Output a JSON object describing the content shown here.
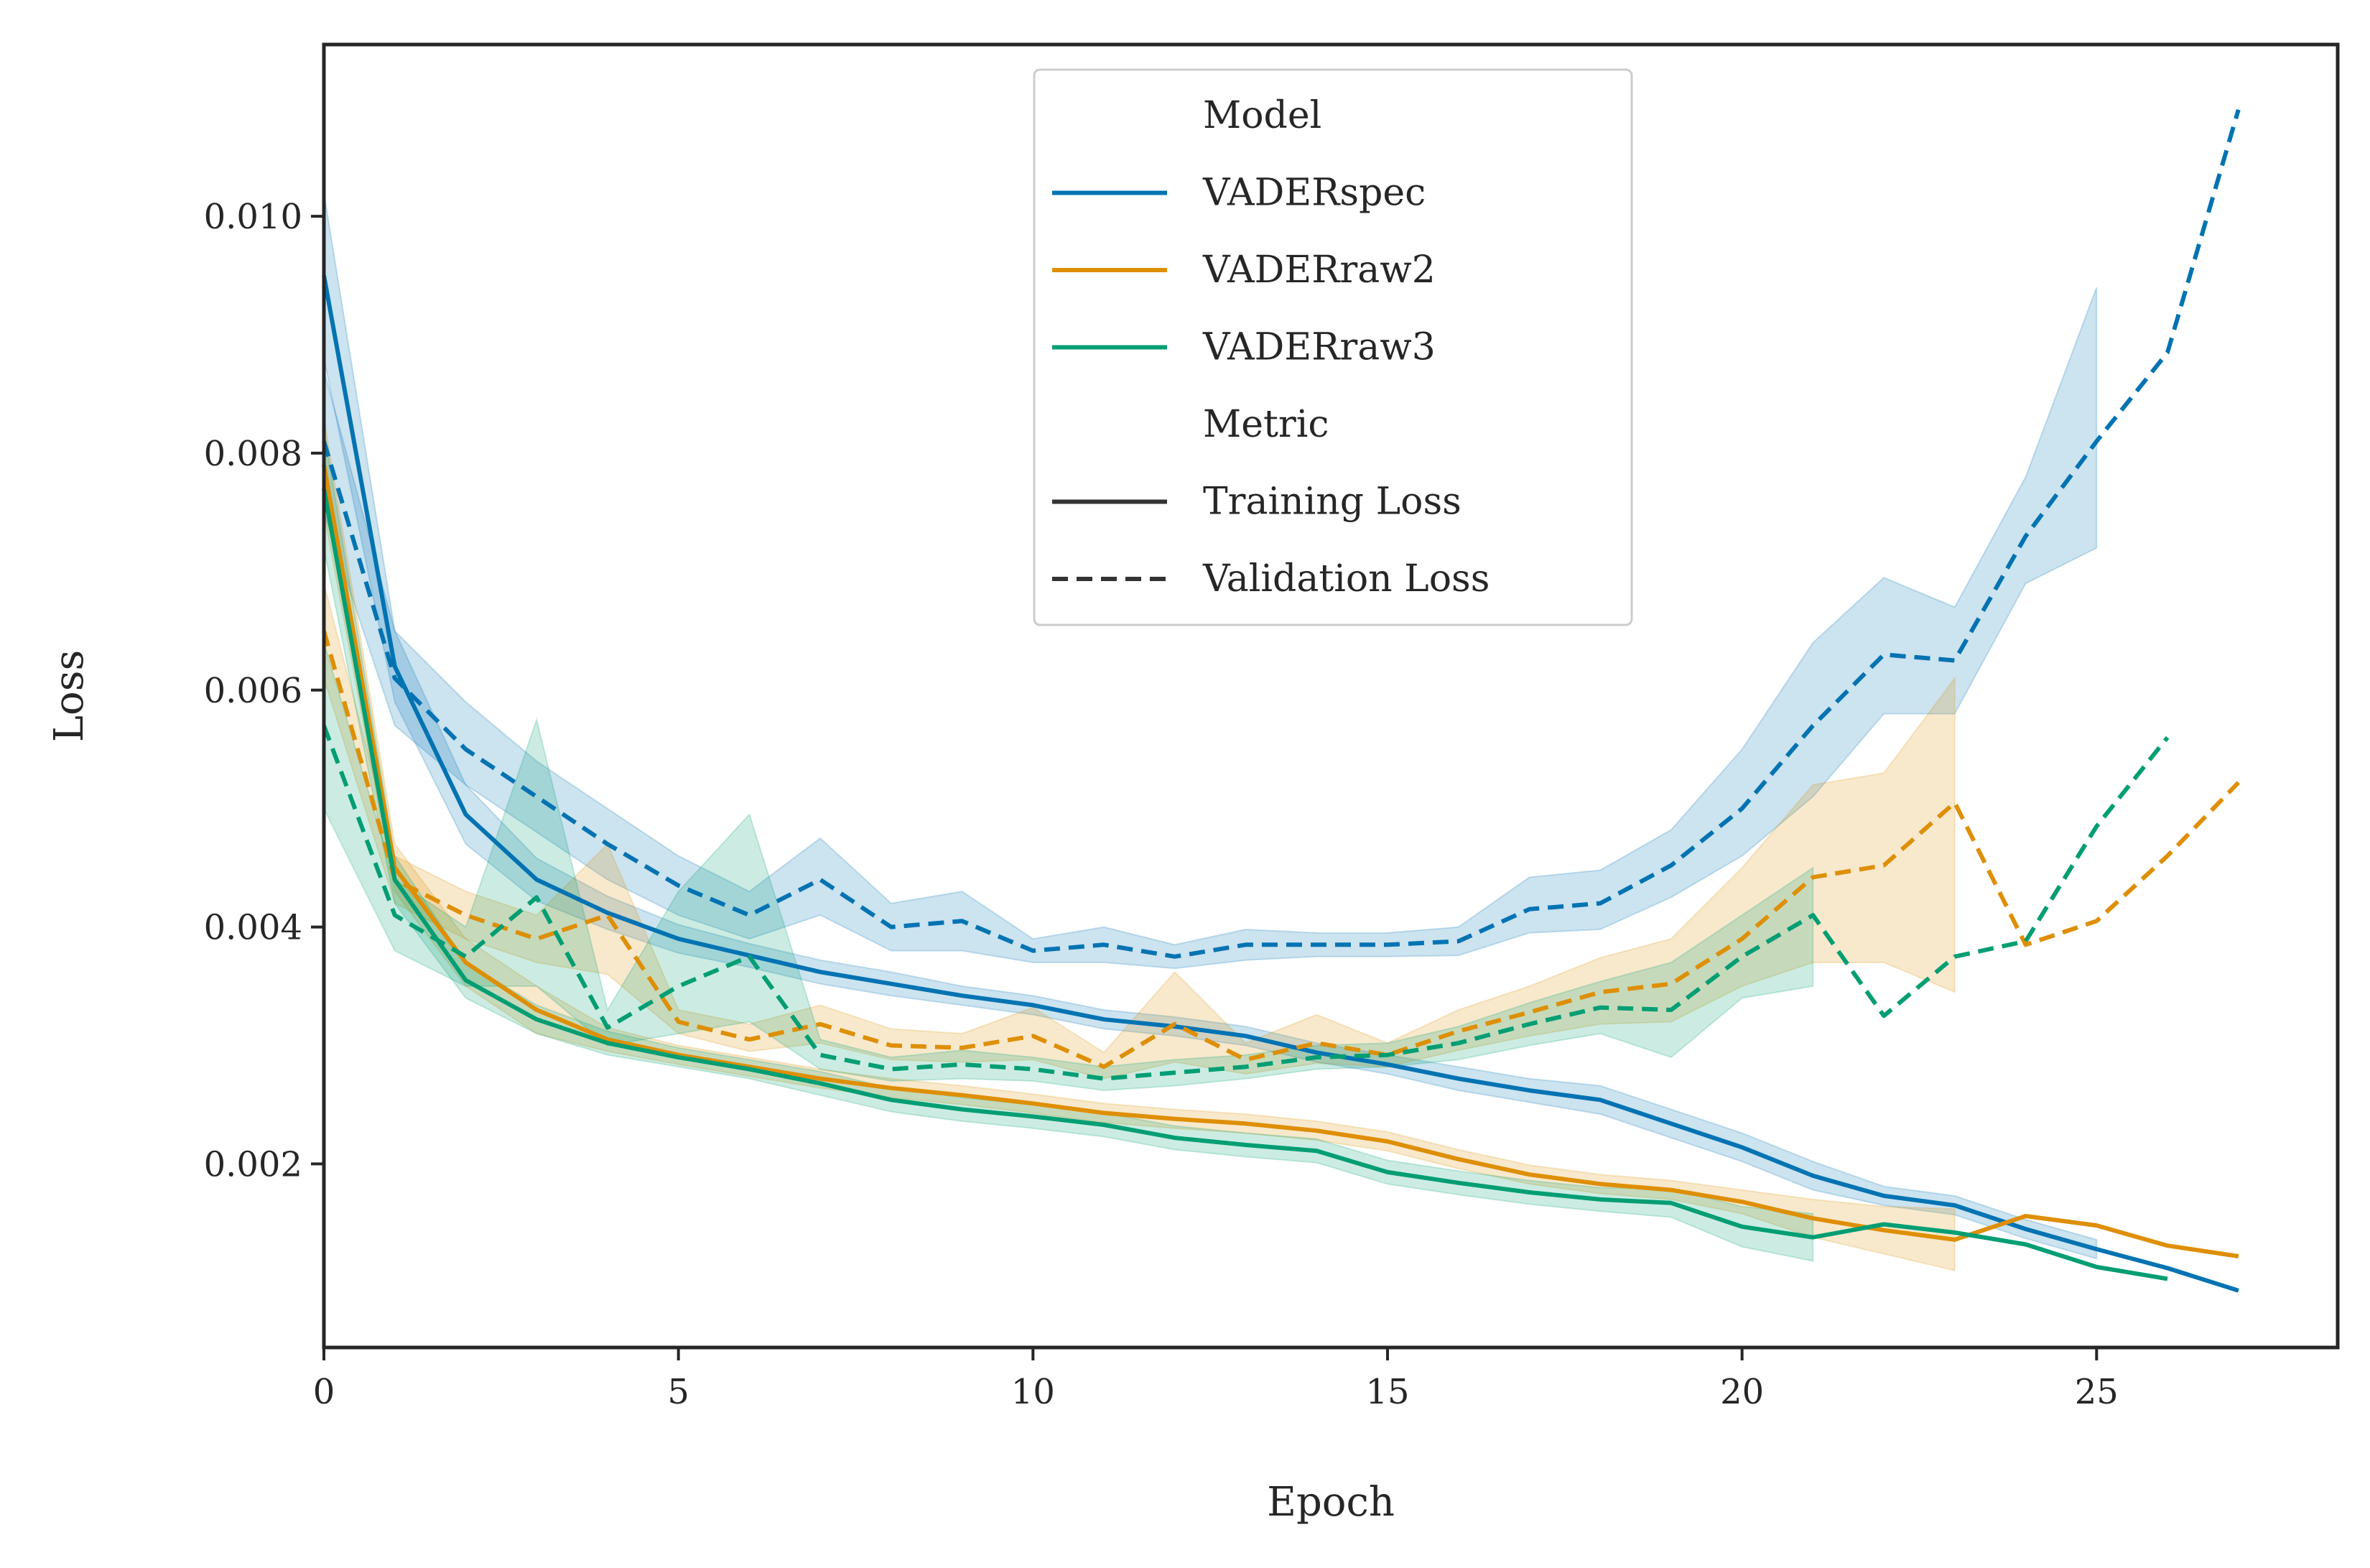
{
  "chart_data": {
    "type": "line",
    "title": "",
    "xlabel": "Epoch",
    "ylabel": "Loss",
    "xlim": [
      0,
      28.4
    ],
    "ylim": [
      0.00045,
      0.01145
    ],
    "xticks": [
      0,
      5,
      10,
      15,
      20,
      25
    ],
    "xtick_labels": [
      "0",
      "5",
      "10",
      "15",
      "20",
      "25"
    ],
    "yticks": [
      0.002,
      0.004,
      0.006,
      0.008,
      0.01
    ],
    "ytick_labels": [
      "0.002",
      "0.004",
      "0.006",
      "0.008",
      "0.010"
    ],
    "grid": false,
    "legend": {
      "position": "top-center",
      "model_header": "Model",
      "metric_header": "Metric",
      "models": [
        {
          "name": "VADERspec",
          "color": "#0173b2"
        },
        {
          "name": "VADERraw2",
          "color": "#de8f05"
        },
        {
          "name": "VADERraw3",
          "color": "#029e73"
        }
      ],
      "metrics": [
        {
          "name": "Training Loss",
          "style": "solid"
        },
        {
          "name": "Validation Loss",
          "style": "dashed"
        }
      ]
    },
    "series": [
      {
        "name": "VADERspec",
        "metric": "Training Loss",
        "color": "#0173b2",
        "dash": false,
        "x": [
          0,
          1,
          2,
          3,
          4,
          5,
          6,
          7,
          8,
          9,
          10,
          11,
          12,
          13,
          14,
          15,
          16,
          17,
          18,
          19,
          20,
          21,
          22,
          23,
          24,
          25,
          26,
          27
        ],
        "y": [
          0.0095,
          0.0062,
          0.00495,
          0.0044,
          0.00412,
          0.0039,
          0.00376,
          0.00362,
          0.00352,
          0.00342,
          0.00334,
          0.00322,
          0.00316,
          0.00308,
          0.00294,
          0.00284,
          0.00272,
          0.00262,
          0.00254,
          0.00234,
          0.00214,
          0.0019,
          0.00173,
          0.00165,
          0.00145,
          0.00128,
          0.00112,
          0.00093
        ],
        "band_lo": [
          0.0088,
          0.0059,
          0.0047,
          0.00422,
          0.00398,
          0.00378,
          0.00366,
          0.00352,
          0.00342,
          0.00334,
          0.00326,
          0.00314,
          0.00308,
          0.003,
          0.00286,
          0.00276,
          0.00262,
          0.00252,
          0.00242,
          0.00222,
          0.00202,
          0.00178,
          0.00165,
          0.00157,
          0.00137,
          0.0012,
          null,
          null
        ],
        "band_hi": [
          0.0102,
          0.0065,
          0.0052,
          0.00458,
          0.00426,
          0.00402,
          0.00386,
          0.00372,
          0.00362,
          0.0035,
          0.00342,
          0.0033,
          0.00324,
          0.00316,
          0.00302,
          0.00292,
          0.00282,
          0.00272,
          0.00266,
          0.00246,
          0.00226,
          0.00202,
          0.00181,
          0.00173,
          0.00153,
          0.00136,
          null,
          null
        ]
      },
      {
        "name": "VADERspec",
        "metric": "Validation Loss",
        "color": "#0173b2",
        "dash": true,
        "x": [
          0,
          1,
          2,
          3,
          4,
          5,
          6,
          7,
          8,
          9,
          10,
          11,
          12,
          13,
          14,
          15,
          16,
          17,
          18,
          19,
          20,
          21,
          22,
          23,
          24,
          25,
          26,
          27
        ],
        "y": [
          0.0081,
          0.0061,
          0.0055,
          0.0051,
          0.0047,
          0.00435,
          0.0041,
          0.0044,
          0.004,
          0.00405,
          0.0038,
          0.00385,
          0.00375,
          0.00385,
          0.00385,
          0.00385,
          0.00388,
          0.00415,
          0.0042,
          0.00452,
          0.005,
          0.0057,
          0.0063,
          0.00625,
          0.0073,
          0.0081,
          0.00885,
          0.0109
        ],
        "band_lo": [
          0.0075,
          0.0057,
          0.0052,
          0.0048,
          0.0044,
          0.0041,
          0.0039,
          0.0041,
          0.0038,
          0.0038,
          0.0037,
          0.0037,
          0.00365,
          0.00372,
          0.00375,
          0.00375,
          0.00376,
          0.00395,
          0.00398,
          0.00425,
          0.0046,
          0.0051,
          0.0058,
          0.0058,
          0.0069,
          0.0072,
          null,
          null
        ],
        "band_hi": [
          0.0087,
          0.0065,
          0.0059,
          0.0054,
          0.005,
          0.0046,
          0.0043,
          0.00475,
          0.0042,
          0.0043,
          0.0039,
          0.004,
          0.00385,
          0.00398,
          0.00395,
          0.00395,
          0.004,
          0.00442,
          0.00448,
          0.00482,
          0.0055,
          0.0064,
          0.00695,
          0.0067,
          0.0078,
          0.0094,
          null,
          null
        ]
      },
      {
        "name": "VADERraw2",
        "metric": "Training Loss",
        "color": "#de8f05",
        "dash": false,
        "x": [
          0,
          1,
          2,
          3,
          4,
          5,
          6,
          7,
          8,
          9,
          10,
          11,
          12,
          13,
          14,
          15,
          16,
          17,
          18,
          19,
          20,
          21,
          22,
          23,
          24,
          25,
          26,
          27
        ],
        "y": [
          0.0079,
          0.0045,
          0.0037,
          0.0033,
          0.00305,
          0.00292,
          0.00282,
          0.00272,
          0.00264,
          0.00258,
          0.00251,
          0.00243,
          0.00238,
          0.00234,
          0.00228,
          0.00219,
          0.00204,
          0.00191,
          0.00183,
          0.00178,
          0.00168,
          0.00154,
          0.00144,
          0.00136,
          0.00156,
          0.00148,
          0.00131,
          0.00122
        ],
        "band_lo": [
          0.0075,
          0.0043,
          0.0035,
          0.0031,
          0.00295,
          0.00284,
          0.00274,
          0.00264,
          0.00256,
          0.0025,
          0.00243,
          0.00235,
          0.0023,
          0.00226,
          0.0022,
          0.00211,
          0.00196,
          0.00183,
          0.00175,
          0.0017,
          0.00158,
          0.00138,
          0.00124,
          0.0011,
          null,
          null,
          null,
          null
        ],
        "band_hi": [
          0.0083,
          0.0047,
          0.0039,
          0.0035,
          0.00315,
          0.003,
          0.0029,
          0.0028,
          0.00272,
          0.00266,
          0.00259,
          0.00251,
          0.00246,
          0.00242,
          0.00236,
          0.00227,
          0.00212,
          0.00199,
          0.00191,
          0.00186,
          0.00178,
          0.0017,
          0.00164,
          0.00162,
          null,
          null,
          null,
          null
        ]
      },
      {
        "name": "VADERraw2",
        "metric": "Validation Loss",
        "color": "#de8f05",
        "dash": true,
        "x": [
          0,
          1,
          2,
          3,
          4,
          5,
          6,
          7,
          8,
          9,
          10,
          11,
          12,
          13,
          14,
          15,
          16,
          17,
          18,
          19,
          20,
          21,
          22,
          23,
          24,
          25,
          26,
          27
        ],
        "y": [
          0.0065,
          0.0044,
          0.0041,
          0.0039,
          0.0041,
          0.0032,
          0.00305,
          0.00318,
          0.003,
          0.00298,
          0.00308,
          0.00282,
          0.00318,
          0.00288,
          0.00302,
          0.00292,
          0.00312,
          0.00328,
          0.00345,
          0.00352,
          0.0039,
          0.00442,
          0.00452,
          0.00505,
          0.00385,
          0.00405,
          0.0046,
          0.00522
        ],
        "band_lo": [
          0.0061,
          0.0042,
          0.0039,
          0.0037,
          0.0036,
          0.0031,
          0.00295,
          0.00302,
          0.00288,
          0.00286,
          0.00288,
          0.00272,
          0.00286,
          0.00276,
          0.00285,
          0.00282,
          0.00296,
          0.00308,
          0.00318,
          0.0032,
          0.0035,
          0.0037,
          0.0037,
          0.00345,
          null,
          null,
          null,
          null
        ],
        "band_hi": [
          0.0069,
          0.0046,
          0.0043,
          0.0041,
          0.0047,
          0.0033,
          0.00318,
          0.00334,
          0.00314,
          0.0031,
          0.00332,
          0.00294,
          0.00362,
          0.00302,
          0.00326,
          0.00302,
          0.0033,
          0.0035,
          0.00374,
          0.0039,
          0.0045,
          0.0052,
          0.0053,
          0.0061,
          null,
          null,
          null,
          null
        ]
      },
      {
        "name": "VADERraw3",
        "metric": "Training Loss",
        "color": "#029e73",
        "dash": false,
        "x": [
          0,
          1,
          2,
          3,
          4,
          5,
          6,
          7,
          8,
          9,
          10,
          11,
          12,
          13,
          14,
          15,
          16,
          17,
          18,
          19,
          20,
          21,
          22,
          23,
          24,
          25,
          26
        ],
        "y": [
          0.0077,
          0.0044,
          0.00355,
          0.00322,
          0.00302,
          0.0029,
          0.0028,
          0.00268,
          0.00254,
          0.00246,
          0.0024,
          0.00233,
          0.00222,
          0.00216,
          0.00211,
          0.00193,
          0.00184,
          0.00176,
          0.0017,
          0.00167,
          0.00147,
          0.00138,
          0.00149,
          0.00142,
          0.00132,
          0.00113,
          0.00103
        ],
        "band_lo": [
          0.0072,
          0.0042,
          0.0034,
          0.0031,
          0.00292,
          0.00282,
          0.00272,
          0.00258,
          0.00244,
          0.00236,
          0.0023,
          0.00223,
          0.00212,
          0.00206,
          0.00201,
          0.00183,
          0.00174,
          0.00166,
          0.0016,
          0.00155,
          0.0013,
          0.00118,
          null,
          null,
          null,
          null,
          null
        ],
        "band_hi": [
          0.0082,
          0.0046,
          0.0037,
          0.00334,
          0.00312,
          0.00298,
          0.00288,
          0.00278,
          0.00264,
          0.00256,
          0.0025,
          0.00243,
          0.00232,
          0.00226,
          0.00221,
          0.00203,
          0.00194,
          0.00186,
          0.0018,
          0.00179,
          0.00164,
          0.00158,
          null,
          null,
          null,
          null,
          null
        ]
      },
      {
        "name": "VADERraw3",
        "metric": "Validation Loss",
        "color": "#029e73",
        "dash": true,
        "x": [
          0,
          1,
          2,
          3,
          4,
          5,
          6,
          7,
          8,
          9,
          10,
          11,
          12,
          13,
          14,
          15,
          16,
          17,
          18,
          19,
          20,
          21,
          22,
          23,
          24,
          25,
          26
        ],
        "y": [
          0.0057,
          0.0041,
          0.00375,
          0.00425,
          0.00315,
          0.0035,
          0.00375,
          0.00292,
          0.0028,
          0.00284,
          0.0028,
          0.00272,
          0.00277,
          0.00282,
          0.0029,
          0.00292,
          0.00302,
          0.00318,
          0.00332,
          0.0033,
          0.00375,
          0.0041,
          0.00325,
          0.00375,
          0.00388,
          0.00485,
          0.0056
        ],
        "band_lo": [
          0.005,
          0.0038,
          0.0035,
          0.0035,
          0.003,
          0.0031,
          0.0032,
          0.0028,
          0.0027,
          0.00272,
          0.0027,
          0.00262,
          0.00266,
          0.00272,
          0.0028,
          0.00282,
          0.00288,
          0.003,
          0.0031,
          0.0029,
          0.0034,
          0.0035,
          null,
          null,
          null,
          null,
          null
        ],
        "band_hi": [
          0.0064,
          0.0044,
          0.004,
          0.00575,
          0.0033,
          0.0043,
          0.00495,
          0.00305,
          0.0029,
          0.00296,
          0.0029,
          0.00282,
          0.00288,
          0.00292,
          0.003,
          0.00302,
          0.00316,
          0.00336,
          0.00354,
          0.0037,
          0.0041,
          0.0045,
          null,
          null,
          null,
          null,
          null
        ]
      }
    ]
  }
}
